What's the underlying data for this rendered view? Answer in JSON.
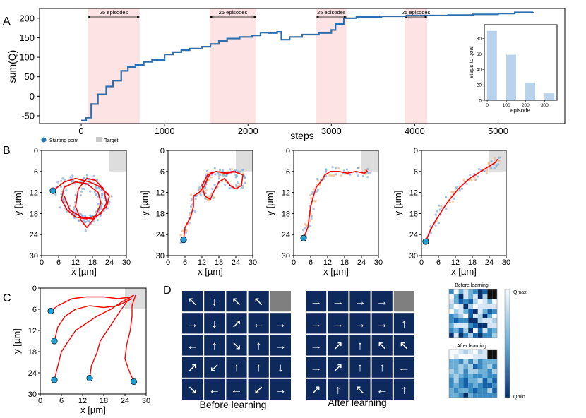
{
  "panel_labels": {
    "A": "A",
    "B": "B",
    "C": "C",
    "D": "D"
  },
  "colors": {
    "walk": "#ff0000",
    "episode_shade": "#fde3e3",
    "curve": "#2c6fb0",
    "start": "#1f9fd6",
    "target": "#dddddd",
    "blue_points": "#7aaad8",
    "orange_points": "#f6b27a",
    "grid_cell": "#0e2a5c",
    "grid_gray": "#7f7f7f"
  },
  "chart_data": [
    {
      "id": "A",
      "type": "line",
      "xlabel": "steps",
      "ylabel": "sum(Q)",
      "xlim": [
        -500,
        5800
      ],
      "ylim": [
        -70,
        225
      ],
      "xticks": [
        0,
        1000,
        2000,
        3000,
        4000,
        5000
      ],
      "yticks": [
        -50,
        0,
        50,
        100,
        150,
        200
      ],
      "series": [
        {
          "values": [
            [
              0,
              -62
            ],
            [
              60,
              -55
            ],
            [
              120,
              -20
            ],
            [
              200,
              5
            ],
            [
              300,
              25
            ],
            [
              380,
              40
            ],
            [
              480,
              65
            ],
            [
              560,
              75
            ],
            [
              650,
              80
            ],
            [
              750,
              88
            ],
            [
              850,
              93
            ],
            [
              1000,
              107
            ],
            [
              1100,
              113
            ],
            [
              1200,
              118
            ],
            [
              1300,
              122
            ],
            [
              1450,
              127
            ],
            [
              1550,
              134
            ],
            [
              1650,
              142
            ],
            [
              1750,
              148
            ],
            [
              1900,
              152
            ],
            [
              2050,
              156
            ],
            [
              2150,
              163
            ],
            [
              2250,
              162
            ],
            [
              2350,
              165
            ],
            [
              2400,
              145
            ],
            [
              2500,
              152
            ],
            [
              2650,
              158
            ],
            [
              2850,
              162
            ],
            [
              3000,
              170
            ],
            [
              3050,
              185
            ],
            [
              3150,
              200
            ],
            [
              3300,
              203
            ],
            [
              3600,
              205
            ],
            [
              3900,
              207
            ],
            [
              4100,
              207
            ],
            [
              4400,
              208
            ],
            [
              4700,
              210
            ],
            [
              5000,
              212
            ],
            [
              5200,
              215
            ],
            [
              5420,
              216
            ]
          ]
        }
      ],
      "shaded_ranges": [
        [
          80,
          700
        ],
        [
          1540,
          2100
        ],
        [
          2820,
          3180
        ],
        [
          3880,
          4150
        ]
      ],
      "annotations": [
        "25 episodes",
        "25 episodes",
        "25 episodes",
        "25 episodes"
      ],
      "inset": {
        "type": "bar",
        "xlabel": "episode",
        "ylabel": "steps to goal",
        "x": [
          25,
          125,
          225,
          325
        ],
        "values": [
          90,
          59,
          23,
          9
        ],
        "ylim": [
          0,
          98
        ],
        "xlim": [
          -15,
          365
        ],
        "xticks": [
          0,
          100,
          200,
          300
        ],
        "yticks": [
          0,
          20,
          40,
          60,
          80
        ]
      }
    },
    {
      "id": "B",
      "type": "scatter",
      "xlabel": "x [µm]",
      "ylabel": "y [µm]",
      "xlim": [
        0,
        30
      ],
      "ylim": [
        30,
        0
      ],
      "xticks": [
        0,
        6,
        12,
        18,
        24,
        30
      ],
      "yticks": [
        0,
        6,
        12,
        18,
        24,
        30
      ],
      "legend": [
        "Starting point",
        "Target"
      ],
      "target": {
        "x": [
          24,
          30
        ],
        "y": [
          0,
          6
        ]
      },
      "panels": [
        {
          "start": [
            4,
            11.5
          ],
          "walk": [
            [
              4,
              11.5
            ],
            [
              8,
              9
            ],
            [
              12,
              8
            ],
            [
              17,
              9
            ],
            [
              21,
              10.5
            ],
            [
              24,
              13
            ],
            [
              23,
              16
            ],
            [
              20,
              18.5
            ],
            [
              16,
              19.5
            ],
            [
              12,
              19
            ],
            [
              9,
              17
            ],
            [
              7,
              14
            ],
            [
              8,
              10.5
            ],
            [
              12,
              9
            ],
            [
              16,
              9.5
            ],
            [
              20,
              12
            ],
            [
              21,
              15
            ],
            [
              19,
              19
            ],
            [
              16,
              22
            ],
            [
              14,
              20
            ],
            [
              12,
              16
            ],
            [
              13,
              11
            ],
            [
              16,
              8
            ],
            [
              19,
              8.5
            ],
            [
              22,
              11
            ],
            [
              23,
              15
            ],
            [
              21,
              18
            ],
            [
              18,
              19.5
            ],
            [
              14,
              19
            ],
            [
              10,
              17
            ],
            [
              8,
              13
            ]
          ]
        },
        {
          "start": [
            5.5,
            25.5
          ],
          "walk": [
            [
              5.5,
              25.5
            ],
            [
              6,
              22
            ],
            [
              8,
              19
            ],
            [
              9,
              16
            ],
            [
              9,
              13
            ],
            [
              11,
              12
            ],
            [
              13,
              10
            ],
            [
              14,
              8
            ],
            [
              15,
              6.5
            ],
            [
              17,
              6
            ],
            [
              20,
              6.5
            ],
            [
              23,
              6
            ],
            [
              25,
              6.5
            ],
            [
              26.5,
              7
            ],
            [
              26,
              10
            ],
            [
              24,
              11
            ],
            [
              22,
              10
            ],
            [
              20,
              8
            ],
            [
              18,
              9
            ],
            [
              16,
              12
            ],
            [
              15,
              14
            ],
            [
              13,
              13
            ],
            [
              12,
              10
            ],
            [
              14,
              7
            ],
            [
              17,
              6
            ],
            [
              21,
              6.5
            ],
            [
              24,
              6
            ]
          ]
        },
        {
          "start": [
            3.5,
            25
          ],
          "walk": [
            [
              3.5,
              25
            ],
            [
              5,
              22
            ],
            [
              5.5,
              19
            ],
            [
              6,
              16
            ],
            [
              7,
              13
            ],
            [
              8,
              10.5
            ],
            [
              10,
              8.5
            ],
            [
              11,
              7
            ],
            [
              13,
              6
            ],
            [
              16,
              6
            ],
            [
              19,
              6.5
            ],
            [
              22,
              6
            ],
            [
              25,
              6.5
            ],
            [
              26,
              6
            ],
            [
              25.5,
              5.5
            ]
          ]
        },
        {
          "start": [
            1.5,
            26
          ],
          "walk": [
            [
              1.5,
              26
            ],
            [
              3,
              23
            ],
            [
              5,
              20
            ],
            [
              7,
              17.5
            ],
            [
              9,
              15
            ],
            [
              11,
              13
            ],
            [
              13,
              11
            ],
            [
              15,
              9.5
            ],
            [
              17,
              8
            ],
            [
              19,
              7
            ],
            [
              21,
              6
            ],
            [
              23,
              5
            ],
            [
              25,
              4
            ],
            [
              26,
              3.5
            ],
            [
              27,
              2.5
            ]
          ]
        }
      ]
    },
    {
      "id": "C",
      "type": "scatter",
      "xlabel": "x [µm]",
      "ylabel": "y [µm]",
      "xlim": [
        0,
        30
      ],
      "ylim": [
        30,
        0
      ],
      "xticks": [
        0,
        6,
        12,
        18,
        24,
        30
      ],
      "yticks": [
        0,
        6,
        12,
        18,
        24,
        30
      ],
      "target": {
        "x": [
          24,
          30
        ],
        "y": [
          0,
          6
        ]
      },
      "starts": [
        [
          3,
          6.5
        ],
        [
          4,
          15
        ],
        [
          4,
          26
        ],
        [
          14,
          25.5
        ],
        [
          26.5,
          26.5
        ]
      ],
      "walks": [
        [
          [
            3,
            6.5
          ],
          [
            5,
            5
          ],
          [
            9,
            3
          ],
          [
            13,
            2.5
          ],
          [
            18,
            2.5
          ],
          [
            22,
            3
          ],
          [
            26,
            2.5
          ]
        ],
        [
          [
            4,
            15
          ],
          [
            5,
            11
          ],
          [
            7,
            8
          ],
          [
            10,
            6
          ],
          [
            14,
            5
          ],
          [
            18,
            5.5
          ],
          [
            22,
            5
          ],
          [
            26,
            3
          ]
        ],
        [
          [
            4,
            26
          ],
          [
            5,
            22
          ],
          [
            6,
            18
          ],
          [
            8,
            15
          ],
          [
            10,
            12
          ],
          [
            13,
            10
          ],
          [
            16,
            8
          ],
          [
            20,
            6
          ],
          [
            23,
            4
          ],
          [
            26.5,
            2
          ]
        ],
        [
          [
            14,
            25.5
          ],
          [
            14.5,
            22
          ],
          [
            16,
            18.5
          ],
          [
            17,
            15
          ],
          [
            19,
            12
          ],
          [
            21,
            9
          ],
          [
            23,
            6
          ],
          [
            25.5,
            2.5
          ]
        ],
        [
          [
            26.5,
            26.5
          ],
          [
            25,
            23
          ],
          [
            24,
            20
          ],
          [
            24.5,
            16
          ],
          [
            25.5,
            12
          ],
          [
            26,
            8
          ],
          [
            26,
            5
          ],
          [
            27,
            2
          ]
        ]
      ]
    }
  ],
  "policy_grids": {
    "before": {
      "caption": "Before learning",
      "rows": [
        [
          "↖",
          "↓",
          "↖",
          "↖",
          ""
        ],
        [
          "→",
          "↓",
          "↗",
          "←",
          "→"
        ],
        [
          "←",
          "↑",
          "↘",
          "↑",
          "→"
        ],
        [
          "↗",
          "↙",
          "↑",
          "↑",
          "↓"
        ],
        [
          "↘",
          "←",
          "←",
          "↙",
          "→"
        ]
      ]
    },
    "after": {
      "caption": "After learning",
      "rows": [
        [
          "→",
          "→",
          "→",
          "→",
          ""
        ],
        [
          "→",
          "→",
          "→",
          "→",
          "↑"
        ],
        [
          "→",
          "↗",
          "↑",
          "↖",
          "↖"
        ],
        [
          "→",
          "↗",
          "↑",
          "↑",
          "←"
        ],
        [
          "↗",
          "↑",
          "↖",
          "←",
          "↑"
        ]
      ]
    }
  },
  "q_heatmaps": {
    "before_title": "Before learning",
    "after_title": "After learning",
    "colorbar_max": "Qmax",
    "colorbar_min": "Qmin"
  }
}
